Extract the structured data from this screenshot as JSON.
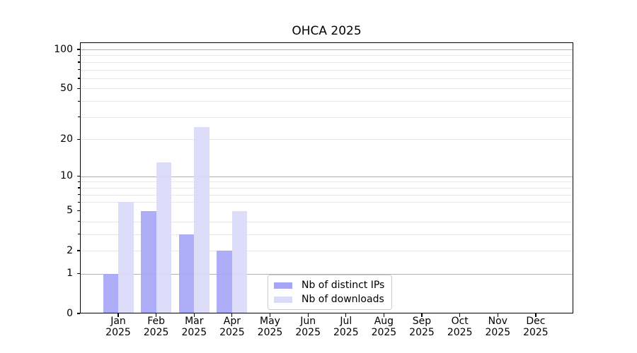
{
  "title": "OHCA 2025",
  "chart_data": {
    "type": "bar",
    "title": "OHCA 2025",
    "categories": [
      "Jan 2025",
      "Feb 2025",
      "Mar 2025",
      "Apr 2025",
      "May 2025",
      "Jun 2025",
      "Jul 2025",
      "Aug 2025",
      "Sep 2025",
      "Oct 2025",
      "Nov 2025",
      "Dec 2025"
    ],
    "x_axis": {
      "months": [
        "Jan",
        "Feb",
        "Mar",
        "Apr",
        "May",
        "Jun",
        "Jul",
        "Aug",
        "Sep",
        "Oct",
        "Nov",
        "Dec"
      ],
      "year": "2025"
    },
    "y_axis": {
      "scale": "log1p",
      "tick_values": [
        0,
        1,
        2,
        5,
        10,
        20,
        50,
        100
      ],
      "major_gridlines": [
        1,
        10,
        100
      ],
      "minor_gridlines": [
        2,
        3,
        4,
        6,
        7,
        8,
        9,
        20,
        30,
        40,
        50,
        60,
        70,
        80,
        90
      ],
      "ylim": [
        0,
        113
      ]
    },
    "series": [
      {
        "name": "Nb of distinct IPs",
        "color": "#a6a6f7",
        "values": [
          1,
          5,
          3,
          2,
          0,
          0,
          0,
          0,
          0,
          0,
          0,
          0
        ]
      },
      {
        "name": "Nb of downloads",
        "color": "#dadaf9",
        "values": [
          6,
          13,
          25,
          5,
          0,
          0,
          0,
          0,
          0,
          0,
          0,
          0
        ]
      }
    ],
    "legend": {
      "position": "lower-center-inside"
    },
    "grid": true,
    "style": {
      "grid_major_color": "#b0b0b0",
      "grid_minor_color": "#e7e7e7",
      "spine_color": "#000000",
      "legend_border_color": "#cccccc",
      "text_color": "#000000"
    }
  }
}
